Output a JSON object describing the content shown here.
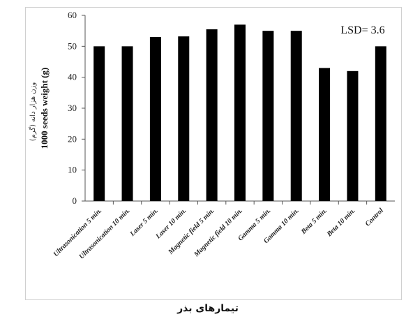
{
  "chart_data": {
    "type": "bar",
    "categories": [
      "Ultrasonication 5 min.",
      "Ultrasonication 10 min.",
      "Laser 5 min.",
      "Laser 10 min.",
      "Magnetic field 5 min.",
      "Magnetic field 10 min.",
      "Gamma 5 min.",
      "Gamma 10 min.",
      "Beta 5 min.",
      "Beta 10 min.",
      "Control"
    ],
    "values": [
      50,
      50,
      53,
      53.2,
      55.5,
      57,
      55,
      55,
      43,
      42,
      50
    ],
    "ylabel": "1000 seeds weight (g)",
    "ylabel_fa": "وزن هزار دانه (گرم)",
    "xlabel": "تیمارهای بذر",
    "ylim": [
      0,
      60
    ],
    "yticks": [
      0,
      10,
      20,
      30,
      40,
      50,
      60
    ],
    "annotation": "LSD= 3.6",
    "bar_color": "#000000",
    "grid": false
  }
}
